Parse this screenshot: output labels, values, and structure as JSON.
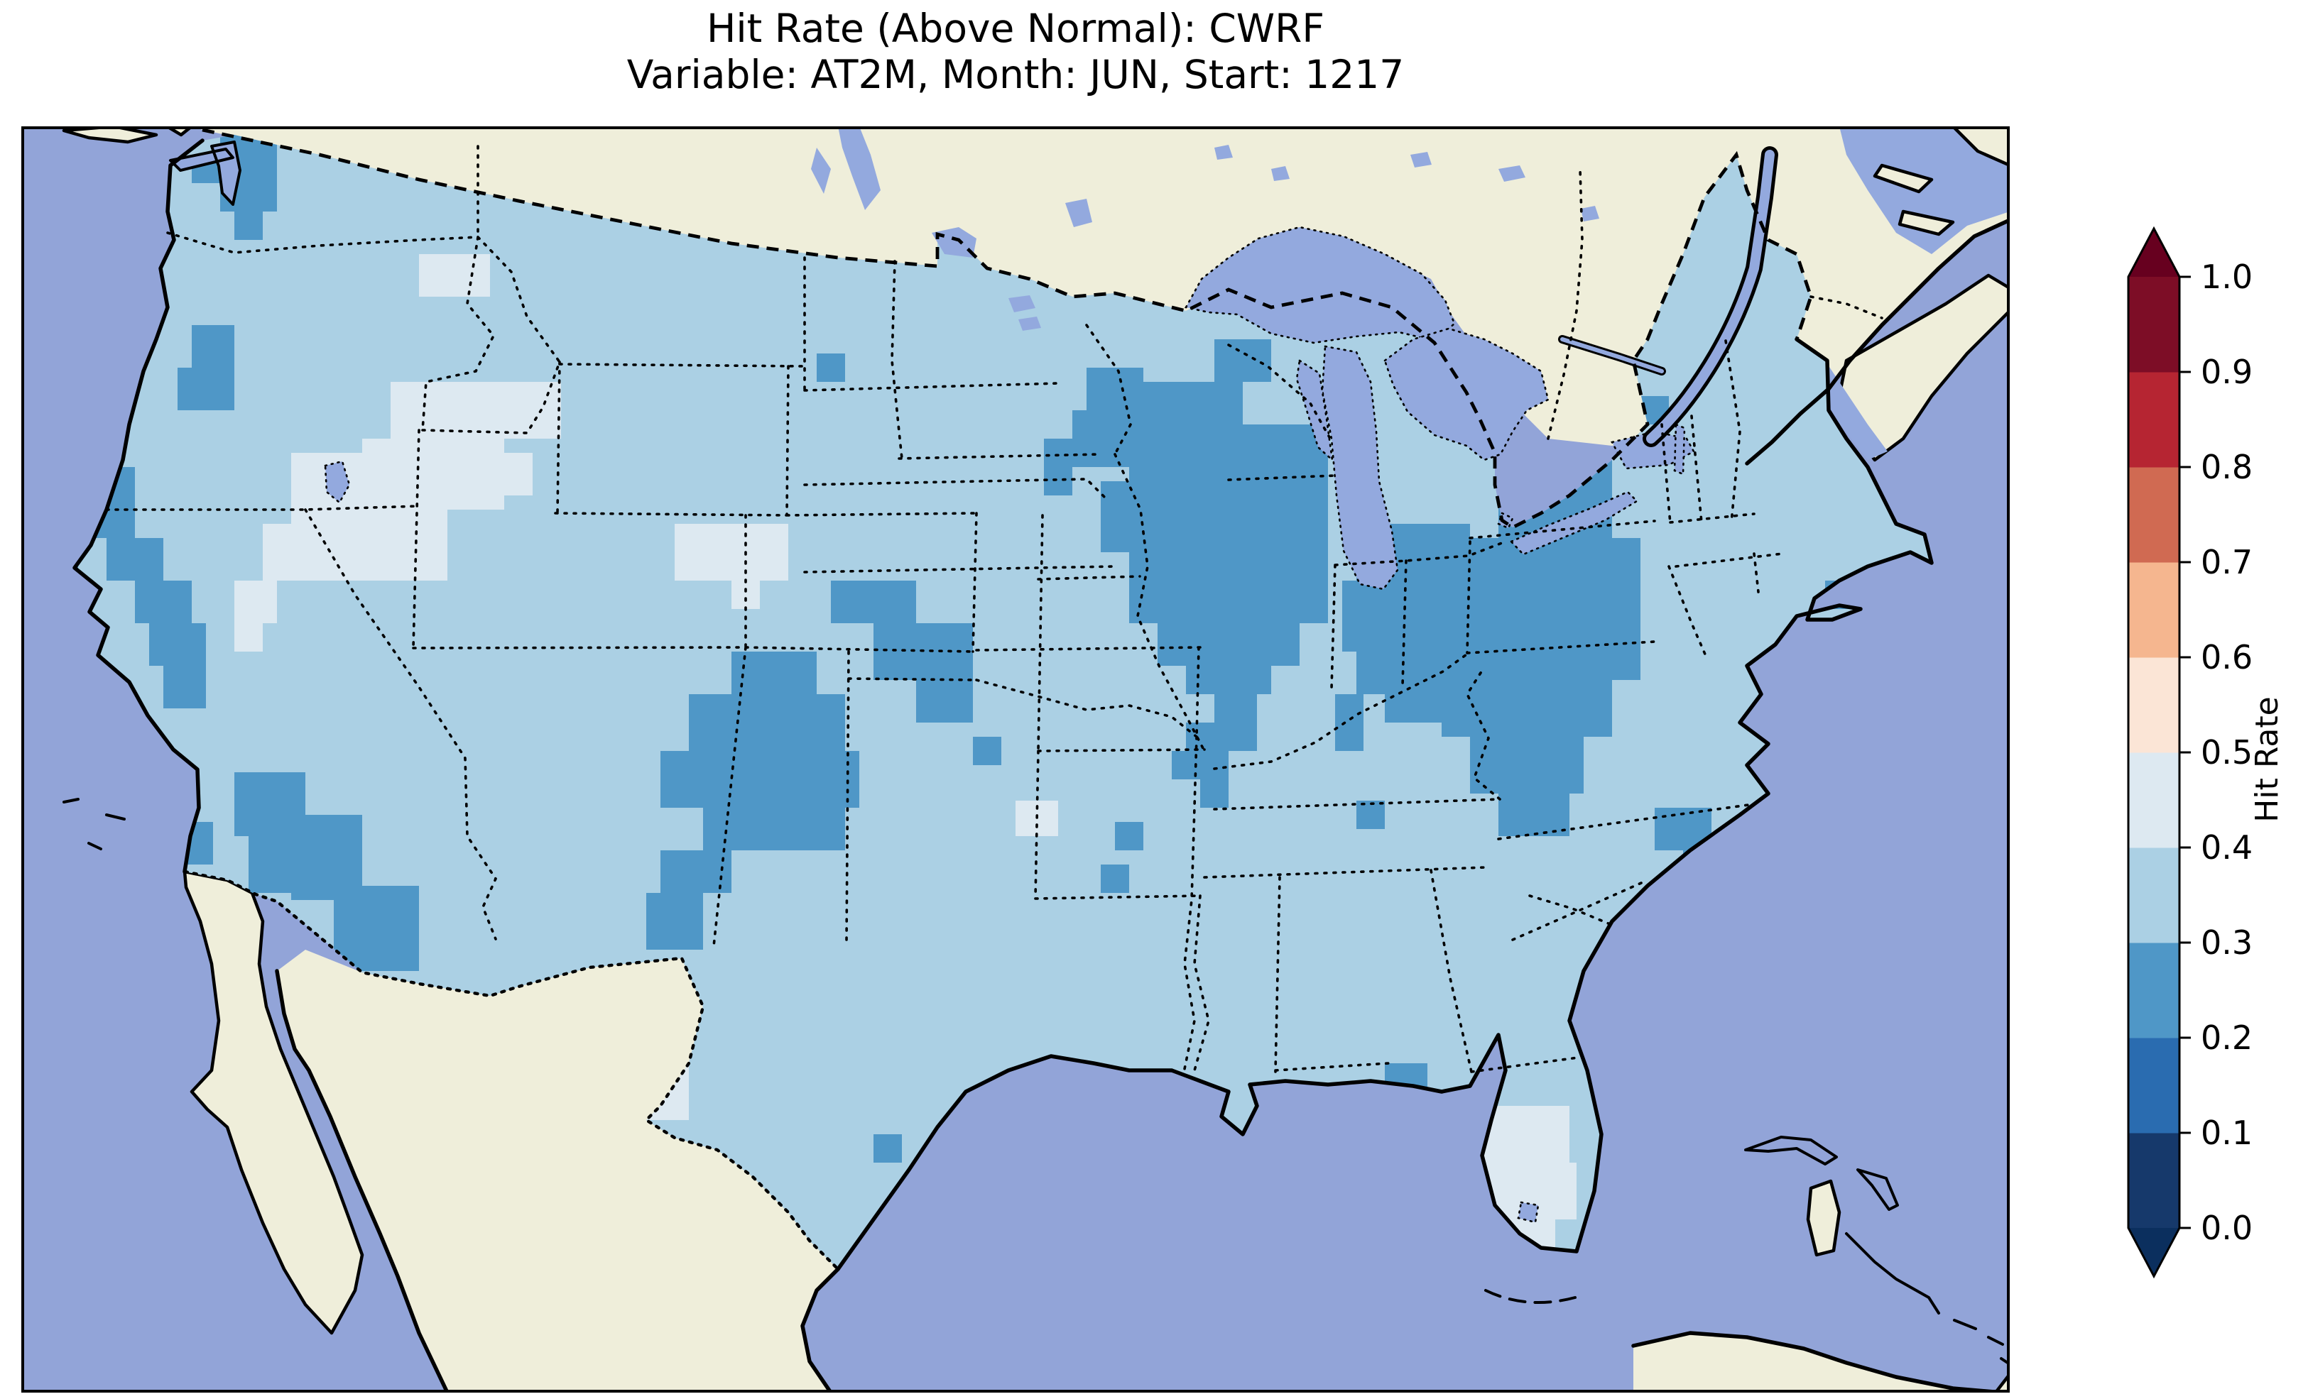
{
  "title": {
    "line1": "Hit Rate (Above Normal): CWRF",
    "line2": "Variable: AT2M, Month: JUN, Start: 1217"
  },
  "colorbar": {
    "label": "Hit Rate",
    "ticks": [
      "1.0",
      "0.9",
      "0.8",
      "0.7",
      "0.6",
      "0.5",
      "0.4",
      "0.3",
      "0.2",
      "0.1",
      "0.0"
    ],
    "segment_colors_bottom_to_top": [
      "#16396b",
      "#2a6cb0",
      "#4f97c7",
      "#abd0e4",
      "#dde9f1",
      "#fbe5d6",
      "#f5b68f",
      "#d06a52",
      "#b62532",
      "#7d0d26"
    ],
    "under_arrow_color": "#0b2f5e",
    "over_arrow_color": "#67001f",
    "extend": "both"
  },
  "map": {
    "colors": {
      "ocean": "#92a4d8",
      "land": "#efeeda",
      "lake": "#93a9de",
      "coastline": "#000000"
    }
  },
  "chart_data": {
    "type": "heatmap",
    "subtype": "gridded hit-rate choropleth over CONUS (Lambert-conformal style map)",
    "title": "Hit Rate (Above Normal): CWRF",
    "subtitle": "Variable: AT2M, Month: JUN, Start: 1217",
    "colorbar_label": "Hit Rate",
    "levels": [
      0.0,
      0.1,
      0.2,
      0.3,
      0.4,
      0.5,
      0.6,
      0.7,
      0.8,
      0.9,
      1.0
    ],
    "extend": "both",
    "bins": {
      "b02": {
        "range": "0.2-0.3",
        "color": "#4f97c7"
      },
      "b03": {
        "range": "0.3-0.4",
        "color": "#abd0e4"
      },
      "b04": {
        "range": "0.4-0.5",
        "color": "#dde9f1"
      }
    },
    "dominant_bin": "b03",
    "values_by_region": [
      {
        "region": "Most of CONUS",
        "hit_rate": "0.3-0.4"
      },
      {
        "region": "Upper Midwest: E Minnesota, Wisconsin, Lower Michigan",
        "hit_rate": "0.2-0.3"
      },
      {
        "region": "Pennsylvania / upstate New York / West Virginia Appalachians",
        "hit_rate": "0.2-0.3"
      },
      {
        "region": "Four Corners and New Mexico",
        "hit_rate": "0.2-0.3"
      },
      {
        "region": "Sierra Nevada, W Oregon Cascades, Puget Sound",
        "hit_rate": "0.2-0.3"
      },
      {
        "region": "Central/SE Arizona and SoCal coast",
        "hit_rate": "0.2-0.3"
      },
      {
        "region": "NE Colorado / W Kansas",
        "hit_rate": "0.2-0.3"
      },
      {
        "region": "Coastal North Carolina",
        "hit_rate": "0.2-0.3"
      },
      {
        "region": "Southern Illinois (isolated)",
        "hit_rate": "0.2-0.3"
      },
      {
        "region": "Florida panhandle coast (isolated)",
        "hit_rate": "0.2-0.3"
      },
      {
        "region": "Yellowstone / SE Idaho / W Wyoming / N Utah",
        "hit_rate": "0.4-0.5"
      },
      {
        "region": "Nebraska panhandle",
        "hit_rate": "0.4-0.5"
      },
      {
        "region": "West Texas (Big Bend)",
        "hit_rate": "0.4-0.5"
      },
      {
        "region": "South Florida",
        "hit_rate": "0.4-0.5"
      },
      {
        "region": "Central Oklahoma (isolated cell)",
        "hit_rate": "0.4-0.5"
      }
    ],
    "patch_units": "map_px (map canvas 2800x1784)",
    "patches": [
      {
        "bin": "b02",
        "rects": [
          [
            280,
            0,
            80,
            40
          ],
          [
            240,
            40,
            120,
            40
          ],
          [
            280,
            80,
            80,
            40
          ],
          [
            300,
            120,
            40,
            40
          ],
          [
            240,
            280,
            60,
            60
          ],
          [
            220,
            340,
            80,
            60
          ],
          [
            100,
            480,
            60,
            40
          ],
          [
            80,
            520,
            80,
            60
          ],
          [
            120,
            580,
            80,
            60
          ],
          [
            160,
            640,
            80,
            60
          ],
          [
            40,
            620,
            40,
            40
          ],
          [
            180,
            700,
            80,
            60
          ],
          [
            200,
            760,
            60,
            60
          ],
          [
            180,
            920,
            60,
            60
          ],
          [
            200,
            980,
            70,
            60
          ],
          [
            300,
            910,
            100,
            90
          ],
          [
            320,
            1000,
            80,
            80
          ],
          [
            400,
            970,
            80,
            60
          ],
          [
            380,
            1030,
            100,
            60
          ],
          [
            440,
            1070,
            120,
            120
          ],
          [
            1000,
            740,
            120,
            60
          ],
          [
            940,
            800,
            220,
            80
          ],
          [
            900,
            880,
            280,
            80
          ],
          [
            960,
            960,
            200,
            60
          ],
          [
            900,
            1020,
            100,
            60
          ],
          [
            880,
            1080,
            80,
            80
          ],
          [
            1140,
            640,
            120,
            60
          ],
          [
            1200,
            700,
            140,
            80
          ],
          [
            1260,
            780,
            80,
            60
          ],
          [
            1120,
            320,
            40,
            40
          ],
          [
            1340,
            860,
            40,
            40
          ],
          [
            1680,
            800,
            60,
            40
          ],
          [
            1640,
            840,
            100,
            40
          ],
          [
            1620,
            880,
            80,
            40
          ],
          [
            1660,
            920,
            40,
            40
          ],
          [
            1540,
            980,
            40,
            40
          ],
          [
            1520,
            1040,
            40,
            40
          ],
          [
            1850,
            800,
            40,
            80
          ],
          [
            1880,
            950,
            40,
            40
          ],
          [
            1500,
            340,
            80,
            60
          ],
          [
            1440,
            440,
            40,
            80
          ],
          [
            1480,
            400,
            120,
            80
          ],
          [
            1560,
            360,
            160,
            60
          ],
          [
            1560,
            420,
            280,
            80
          ],
          [
            1520,
            500,
            320,
            100
          ],
          [
            1560,
            600,
            280,
            100
          ],
          [
            1600,
            700,
            200,
            60
          ],
          [
            1640,
            760,
            120,
            40
          ],
          [
            1680,
            300,
            80,
            60
          ],
          [
            1880,
            560,
            160,
            80
          ],
          [
            1860,
            640,
            200,
            100
          ],
          [
            1880,
            740,
            160,
            60
          ],
          [
            1920,
            800,
            80,
            40
          ],
          [
            2160,
            372,
            80,
            120
          ],
          [
            2080,
            480,
            160,
            100
          ],
          [
            2000,
            580,
            280,
            100
          ],
          [
            1960,
            680,
            320,
            100
          ],
          [
            1880,
            680,
            120,
            80
          ],
          [
            2000,
            780,
            240,
            80
          ],
          [
            2040,
            860,
            160,
            80
          ],
          [
            2080,
            940,
            100,
            60
          ],
          [
            2300,
            960,
            80,
            60
          ],
          [
            2340,
            1020,
            80,
            60
          ],
          [
            2300,
            1080,
            60,
            40
          ],
          [
            2540,
            640,
            60,
            40
          ],
          [
            2280,
            380,
            40,
            40
          ],
          [
            2360,
            0,
            60,
            40
          ],
          [
            1920,
            1320,
            60,
            40
          ],
          [
            1200,
            1420,
            40,
            40
          ]
        ]
      },
      {
        "bin": "b04",
        "rects": [
          [
            560,
            180,
            100,
            60
          ],
          [
            520,
            360,
            120,
            80
          ],
          [
            480,
            440,
            200,
            100
          ],
          [
            440,
            540,
            160,
            100
          ],
          [
            640,
            360,
            120,
            80
          ],
          [
            640,
            460,
            80,
            60
          ],
          [
            380,
            460,
            160,
            100
          ],
          [
            340,
            560,
            120,
            80
          ],
          [
            300,
            640,
            60,
            60
          ],
          [
            300,
            700,
            40,
            40
          ],
          [
            980,
            600,
            60,
            40
          ],
          [
            920,
            560,
            160,
            80
          ],
          [
            1000,
            640,
            40,
            40
          ],
          [
            1400,
            950,
            60,
            50
          ],
          [
            880,
            1260,
            60,
            60
          ],
          [
            860,
            1320,
            80,
            80
          ],
          [
            2060,
            1380,
            120,
            80
          ],
          [
            2050,
            1460,
            140,
            80
          ],
          [
            2080,
            1540,
            80,
            60
          ],
          [
            2030,
            1600,
            40,
            40
          ],
          [
            2130,
            1620,
            40,
            40
          ],
          [
            1990,
            1630,
            40,
            40
          ]
        ]
      }
    ]
  }
}
